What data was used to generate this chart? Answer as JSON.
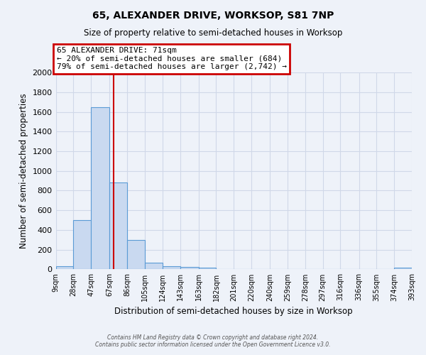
{
  "title": "65, ALEXANDER DRIVE, WORKSOP, S81 7NP",
  "subtitle": "Size of property relative to semi-detached houses in Worksop",
  "xlabel": "Distribution of semi-detached houses by size in Worksop",
  "ylabel": "Number of semi-detached properties",
  "bin_edges": [
    9,
    28,
    47,
    67,
    86,
    105,
    124,
    143,
    163,
    182,
    201,
    220,
    240,
    259,
    278,
    297,
    316,
    336,
    355,
    374,
    393
  ],
  "bin_labels": [
    "9sqm",
    "28sqm",
    "47sqm",
    "67sqm",
    "86sqm",
    "105sqm",
    "124sqm",
    "143sqm",
    "163sqm",
    "182sqm",
    "201sqm",
    "220sqm",
    "240sqm",
    "259sqm",
    "278sqm",
    "297sqm",
    "316sqm",
    "336sqm",
    "355sqm",
    "374sqm",
    "393sqm"
  ],
  "counts": [
    30,
    500,
    1650,
    880,
    300,
    70,
    35,
    25,
    15,
    0,
    0,
    0,
    0,
    0,
    0,
    0,
    0,
    0,
    0,
    15
  ],
  "bar_color": "#c9d9f0",
  "bar_edge_color": "#5b9bd5",
  "bar_linewidth": 0.8,
  "grid_color": "#d0d8e8",
  "bg_color": "#eef2f9",
  "red_line_x": 71,
  "red_line_color": "#cc0000",
  "annotation_line1": "65 ALEXANDER DRIVE: 71sqm",
  "annotation_line2": "← 20% of semi-detached houses are smaller (684)",
  "annotation_line3": "79% of semi-detached houses are larger (2,742) →",
  "annotation_box_color": "#ffffff",
  "annotation_box_edge_color": "#cc0000",
  "ylim": [
    0,
    2000
  ],
  "yticks": [
    0,
    200,
    400,
    600,
    800,
    1000,
    1200,
    1400,
    1600,
    1800,
    2000
  ],
  "footer_line1": "Contains HM Land Registry data © Crown copyright and database right 2024.",
  "footer_line2": "Contains public sector information licensed under the Open Government Licence v3.0."
}
